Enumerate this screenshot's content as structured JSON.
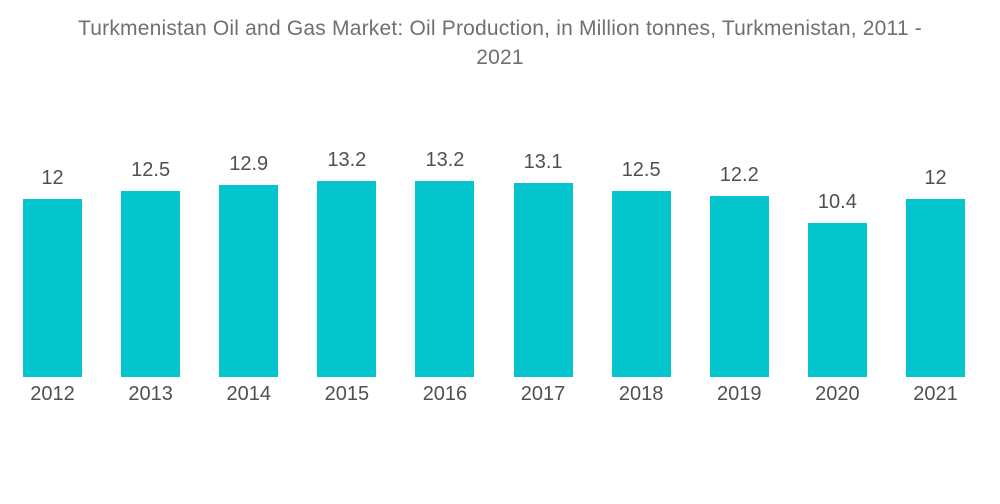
{
  "chart_data": {
    "type": "bar",
    "title": "Turkmenistan Oil and Gas Market: Oil Production, in Million tonnes, Turkmenistan, 2011 - 2021",
    "title_lines": [
      "Turkmenistan Oil and Gas Market: Oil Production, in Million tonnes, Turkmenistan, 2011 -",
      "2021"
    ],
    "categories": [
      "2012",
      "2013",
      "2014",
      "2015",
      "2016",
      "2017",
      "2018",
      "2019",
      "2020",
      "2021"
    ],
    "values": [
      12,
      12.5,
      12.9,
      13.2,
      13.2,
      13.1,
      12.5,
      12.2,
      10.4,
      12
    ],
    "value_labels": [
      "12",
      "12.5",
      "12.9",
      "13.2",
      "13.2",
      "13.1",
      "12.5",
      "12.2",
      "10.4",
      "12"
    ],
    "xlabel": "",
    "ylabel": "",
    "ylim": [
      0,
      13.2
    ],
    "grid": false,
    "legend": false,
    "colors": {
      "bar": "#04C5CD",
      "title_text": "#707073",
      "label_text": "#4F5052",
      "background": "#FFFFFF"
    }
  }
}
